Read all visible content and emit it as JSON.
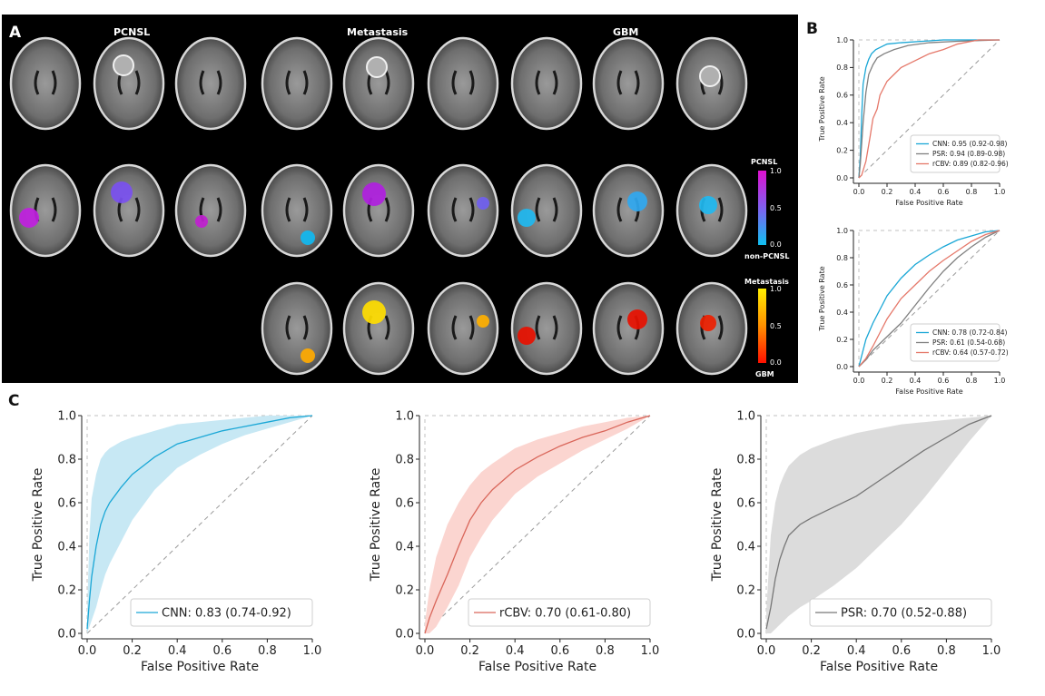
{
  "panels": {
    "a": "A",
    "b": "B",
    "c": "C"
  },
  "panel_a": {
    "groups": [
      "PCNSL",
      "Metastasis",
      "GBM"
    ],
    "colorbar1": {
      "top_label": "PCNSL",
      "bottom_label": "non-PCNSL",
      "ticks": [
        "1.0",
        "0.5",
        "0.0"
      ],
      "colors": [
        "#e010d0",
        "#8060f0",
        "#10c0f0"
      ]
    },
    "colorbar2": {
      "top_label": "Metastasis",
      "bottom_label": "GBM",
      "ticks": [
        "1.0",
        "0.5",
        "0.0"
      ],
      "colors": [
        "#ffee00",
        "#ff9000",
        "#ff1000"
      ]
    }
  },
  "colors": {
    "cnn": "#1aa7d6",
    "psr": "#808080",
    "rcbv": "#e5786a"
  },
  "chart_data": [
    {
      "id": "B-top",
      "type": "line",
      "xlabel": "False Positive Rate",
      "ylabel": "True Positive Rate",
      "xlim": [
        0,
        1
      ],
      "ylim": [
        0,
        1
      ],
      "xticks": [
        "0.0",
        "0.2",
        "0.4",
        "0.6",
        "0.8",
        "1.0"
      ],
      "yticks": [
        "0.0",
        "0.2",
        "0.4",
        "0.6",
        "0.8",
        "1.0"
      ],
      "legend_position": "lower-right",
      "series": [
        {
          "name": "CNN: 0.95 (0.92-0.98)",
          "color": "#1aa7d6",
          "x": [
            0,
            0.01,
            0.02,
            0.03,
            0.05,
            0.07,
            0.09,
            0.12,
            0.16,
            0.2,
            0.3,
            0.45,
            0.6,
            0.8,
            1.0
          ],
          "y": [
            0,
            0.15,
            0.45,
            0.68,
            0.8,
            0.86,
            0.9,
            0.93,
            0.95,
            0.97,
            0.98,
            0.99,
            1.0,
            1.0,
            1.0
          ]
        },
        {
          "name": "PSR: 0.94 (0.89-0.98)",
          "color": "#808080",
          "x": [
            0,
            0.01,
            0.03,
            0.05,
            0.07,
            0.1,
            0.13,
            0.18,
            0.25,
            0.35,
            0.5,
            0.7,
            1.0
          ],
          "y": [
            0,
            0.1,
            0.4,
            0.62,
            0.75,
            0.82,
            0.87,
            0.9,
            0.93,
            0.96,
            0.98,
            0.99,
            1.0
          ]
        },
        {
          "name": "rCBV: 0.89 (0.82-0.96)",
          "color": "#e5786a",
          "x": [
            0,
            0.02,
            0.05,
            0.08,
            0.1,
            0.13,
            0.15,
            0.2,
            0.25,
            0.3,
            0.4,
            0.5,
            0.6,
            0.7,
            0.85,
            1.0
          ],
          "y": [
            0,
            0.02,
            0.12,
            0.3,
            0.43,
            0.5,
            0.6,
            0.7,
            0.75,
            0.8,
            0.85,
            0.9,
            0.93,
            0.97,
            1.0,
            1.0
          ]
        }
      ]
    },
    {
      "id": "B-bottom",
      "type": "line",
      "xlabel": "False Positive Rate",
      "ylabel": "True Positive Rate",
      "xlim": [
        0,
        1
      ],
      "ylim": [
        0,
        1
      ],
      "xticks": [
        "0.0",
        "0.2",
        "0.4",
        "0.6",
        "0.8",
        "1.0"
      ],
      "yticks": [
        "0.0",
        "0.2",
        "0.4",
        "0.6",
        "0.8",
        "1.0"
      ],
      "legend_position": "lower-right",
      "series": [
        {
          "name": "CNN: 0.78 (0.72-0.84)",
          "color": "#1aa7d6",
          "x": [
            0,
            0.02,
            0.05,
            0.1,
            0.15,
            0.2,
            0.3,
            0.4,
            0.5,
            0.6,
            0.7,
            0.8,
            0.9,
            1.0
          ],
          "y": [
            0,
            0.08,
            0.2,
            0.32,
            0.42,
            0.52,
            0.65,
            0.75,
            0.82,
            0.88,
            0.93,
            0.96,
            0.99,
            1.0
          ]
        },
        {
          "name": "PSR: 0.61 (0.54-0.68)",
          "color": "#808080",
          "x": [
            0,
            0.05,
            0.1,
            0.2,
            0.3,
            0.4,
            0.5,
            0.6,
            0.7,
            0.8,
            0.9,
            1.0
          ],
          "y": [
            0,
            0.05,
            0.12,
            0.22,
            0.32,
            0.45,
            0.58,
            0.7,
            0.8,
            0.88,
            0.95,
            1.0
          ]
        },
        {
          "name": "rCBV: 0.64 (0.57-0.72)",
          "color": "#e5786a",
          "x": [
            0,
            0.05,
            0.1,
            0.15,
            0.2,
            0.3,
            0.4,
            0.5,
            0.6,
            0.7,
            0.8,
            0.9,
            1.0
          ],
          "y": [
            0,
            0.06,
            0.15,
            0.25,
            0.35,
            0.5,
            0.6,
            0.7,
            0.78,
            0.85,
            0.92,
            0.97,
            1.0
          ]
        }
      ]
    },
    {
      "id": "C-cnn",
      "type": "area",
      "xlabel": "False Positive Rate",
      "ylabel": "True Positive Rate",
      "xlim": [
        0,
        1
      ],
      "ylim": [
        0,
        1
      ],
      "xticks": [
        "0.0",
        "0.2",
        "0.4",
        "0.6",
        "0.8",
        "1.0"
      ],
      "yticks": [
        "0.0",
        "0.2",
        "0.4",
        "0.6",
        "0.8",
        "1.0"
      ],
      "legend_position": "lower-right",
      "series": [
        {
          "name": "CNN: 0.83 (0.74-0.92)",
          "color": "#1aa7d6",
          "band_color": "#c7e8f4",
          "x": [
            0,
            0.01,
            0.02,
            0.04,
            0.06,
            0.08,
            0.1,
            0.15,
            0.2,
            0.3,
            0.4,
            0.5,
            0.6,
            0.7,
            0.8,
            0.9,
            1.0
          ],
          "y": [
            0.02,
            0.15,
            0.26,
            0.4,
            0.5,
            0.56,
            0.6,
            0.67,
            0.73,
            0.81,
            0.87,
            0.9,
            0.93,
            0.95,
            0.97,
            0.99,
            1.0
          ],
          "lower": [
            0.0,
            0.03,
            0.06,
            0.12,
            0.2,
            0.27,
            0.32,
            0.42,
            0.52,
            0.66,
            0.76,
            0.82,
            0.87,
            0.91,
            0.94,
            0.97,
            1.0
          ],
          "upper": [
            0.1,
            0.45,
            0.62,
            0.73,
            0.8,
            0.83,
            0.85,
            0.88,
            0.9,
            0.93,
            0.96,
            0.97,
            0.98,
            0.99,
            1.0,
            1.0,
            1.0
          ]
        }
      ]
    },
    {
      "id": "C-rcbv",
      "type": "area",
      "xlabel": "False Positive Rate",
      "ylabel": "True Positive Rate",
      "xlim": [
        0,
        1
      ],
      "ylim": [
        0,
        1
      ],
      "xticks": [
        "0.0",
        "0.2",
        "0.4",
        "0.6",
        "0.8",
        "1.0"
      ],
      "yticks": [
        "0.0",
        "0.2",
        "0.4",
        "0.6",
        "0.8",
        "1.0"
      ],
      "legend_position": "lower-right",
      "series": [
        {
          "name": "rCBV: 0.70 (0.61-0.80)",
          "color": "#d9665a",
          "band_color": "#fbd5d0",
          "x": [
            0,
            0.02,
            0.05,
            0.1,
            0.15,
            0.2,
            0.25,
            0.3,
            0.4,
            0.5,
            0.6,
            0.7,
            0.8,
            0.9,
            1.0
          ],
          "y": [
            0.0,
            0.07,
            0.15,
            0.27,
            0.4,
            0.52,
            0.6,
            0.66,
            0.75,
            0.81,
            0.86,
            0.9,
            0.93,
            0.97,
            1.0
          ],
          "lower": [
            0.0,
            0.0,
            0.03,
            0.12,
            0.22,
            0.35,
            0.44,
            0.52,
            0.64,
            0.72,
            0.78,
            0.84,
            0.89,
            0.94,
            1.0
          ],
          "upper": [
            0.05,
            0.2,
            0.35,
            0.5,
            0.6,
            0.68,
            0.74,
            0.78,
            0.85,
            0.89,
            0.92,
            0.95,
            0.97,
            0.99,
            1.0
          ]
        }
      ]
    },
    {
      "id": "C-psr",
      "type": "area",
      "xlabel": "False Positive Rate",
      "ylabel": "True Positive Rate",
      "xlim": [
        0,
        1
      ],
      "ylim": [
        0,
        1
      ],
      "xticks": [
        "0.0",
        "0.2",
        "0.4",
        "0.6",
        "0.8",
        "1.0"
      ],
      "yticks": [
        "0.0",
        "0.2",
        "0.4",
        "0.6",
        "0.8",
        "1.0"
      ],
      "legend_position": "lower-right",
      "series": [
        {
          "name": "PSR: 0.70 (0.52-0.88)",
          "color": "#777777",
          "band_color": "#dcdcdc",
          "x": [
            0,
            0.02,
            0.04,
            0.06,
            0.08,
            0.1,
            0.15,
            0.2,
            0.3,
            0.4,
            0.5,
            0.6,
            0.7,
            0.8,
            0.9,
            1.0
          ],
          "y": [
            0.02,
            0.12,
            0.25,
            0.34,
            0.4,
            0.45,
            0.5,
            0.53,
            0.58,
            0.63,
            0.7,
            0.77,
            0.84,
            0.9,
            0.96,
            1.0
          ],
          "lower": [
            0.0,
            0.0,
            0.02,
            0.04,
            0.06,
            0.08,
            0.12,
            0.15,
            0.22,
            0.3,
            0.4,
            0.5,
            0.62,
            0.75,
            0.88,
            1.0
          ],
          "upper": [
            0.1,
            0.45,
            0.6,
            0.68,
            0.73,
            0.77,
            0.82,
            0.85,
            0.89,
            0.92,
            0.94,
            0.96,
            0.97,
            0.98,
            0.99,
            1.0
          ]
        }
      ]
    }
  ]
}
